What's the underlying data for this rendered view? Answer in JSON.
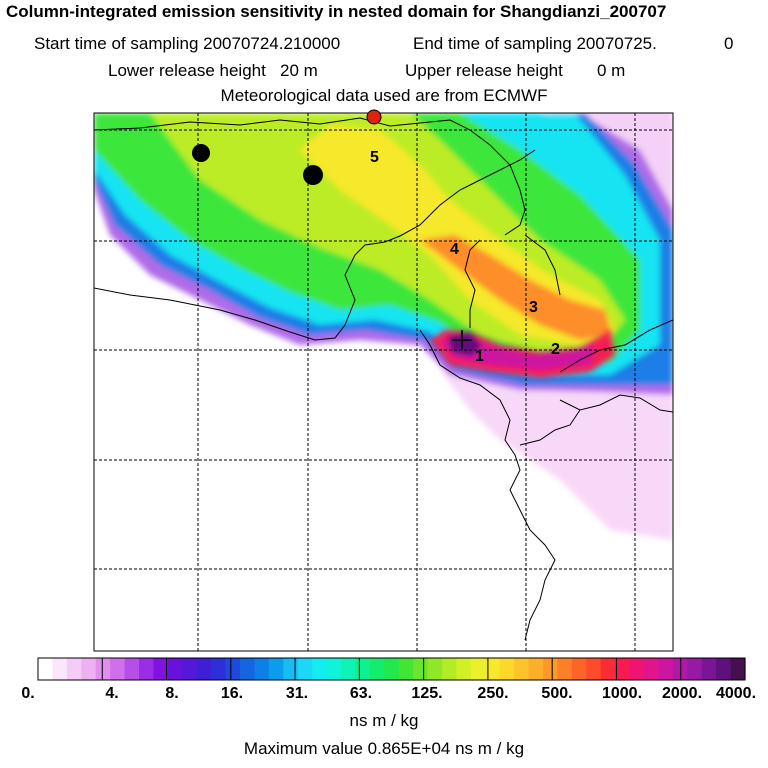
{
  "title": "Column-integrated emission sensitivity in nested domain for Shangdianzi_200707",
  "start_label": "Start time of sampling 20070724.210000",
  "end_label": "End time of sampling 20070725.",
  "end_suffix": "0",
  "lower_label": "Lower release height",
  "lower_value": "20 m",
  "upper_label": "Upper release height",
  "upper_value": "0 m",
  "met_label": "Meteorological data used are from ECMWF",
  "map_labels": [
    "1",
    "2",
    "3",
    "4",
    "5"
  ],
  "markers": {
    "receptor_color": "#e02010",
    "source_color": "#000000"
  },
  "colorbar": {
    "ticks": [
      "0.",
      "4.",
      "8.",
      "16.",
      "31.",
      "63.",
      "125.",
      "250.",
      "500.",
      "1000.",
      "2000.",
      "4000."
    ],
    "colors": [
      "#ffffff",
      "#fbe6fb",
      "#f5ccf5",
      "#eeb0f0",
      "#e08fec",
      "#cf70ea",
      "#b64fe8",
      "#9a2de6",
      "#8212e0",
      "#6a10dc",
      "#5418d8",
      "#3f1fd6",
      "#2d2fd8",
      "#1f48dc",
      "#1564e0",
      "#0c80e6",
      "#0b9cec",
      "#16bcf2",
      "#1ad8f6",
      "#13ecf0",
      "#0ff4d8",
      "#0ff4b4",
      "#0ff090",
      "#14ec6c",
      "#22e84c",
      "#44e434",
      "#6ae42c",
      "#8ee828",
      "#b2ec26",
      "#d2f028",
      "#eaf02a",
      "#f6e82a",
      "#fbd82a",
      "#fcc42a",
      "#fdae2a",
      "#fd982a",
      "#fd8028",
      "#fd6428",
      "#fc4c2a",
      "#fa2c36",
      "#f81a52",
      "#f01472",
      "#e2148a",
      "#cc16a0",
      "#b218a8",
      "#961aa4",
      "#7a1696",
      "#5e107c",
      "#44104e"
    ]
  },
  "units": "ns m / kg",
  "max_label": "Maximum value  0.865E+04 ns m / kg"
}
